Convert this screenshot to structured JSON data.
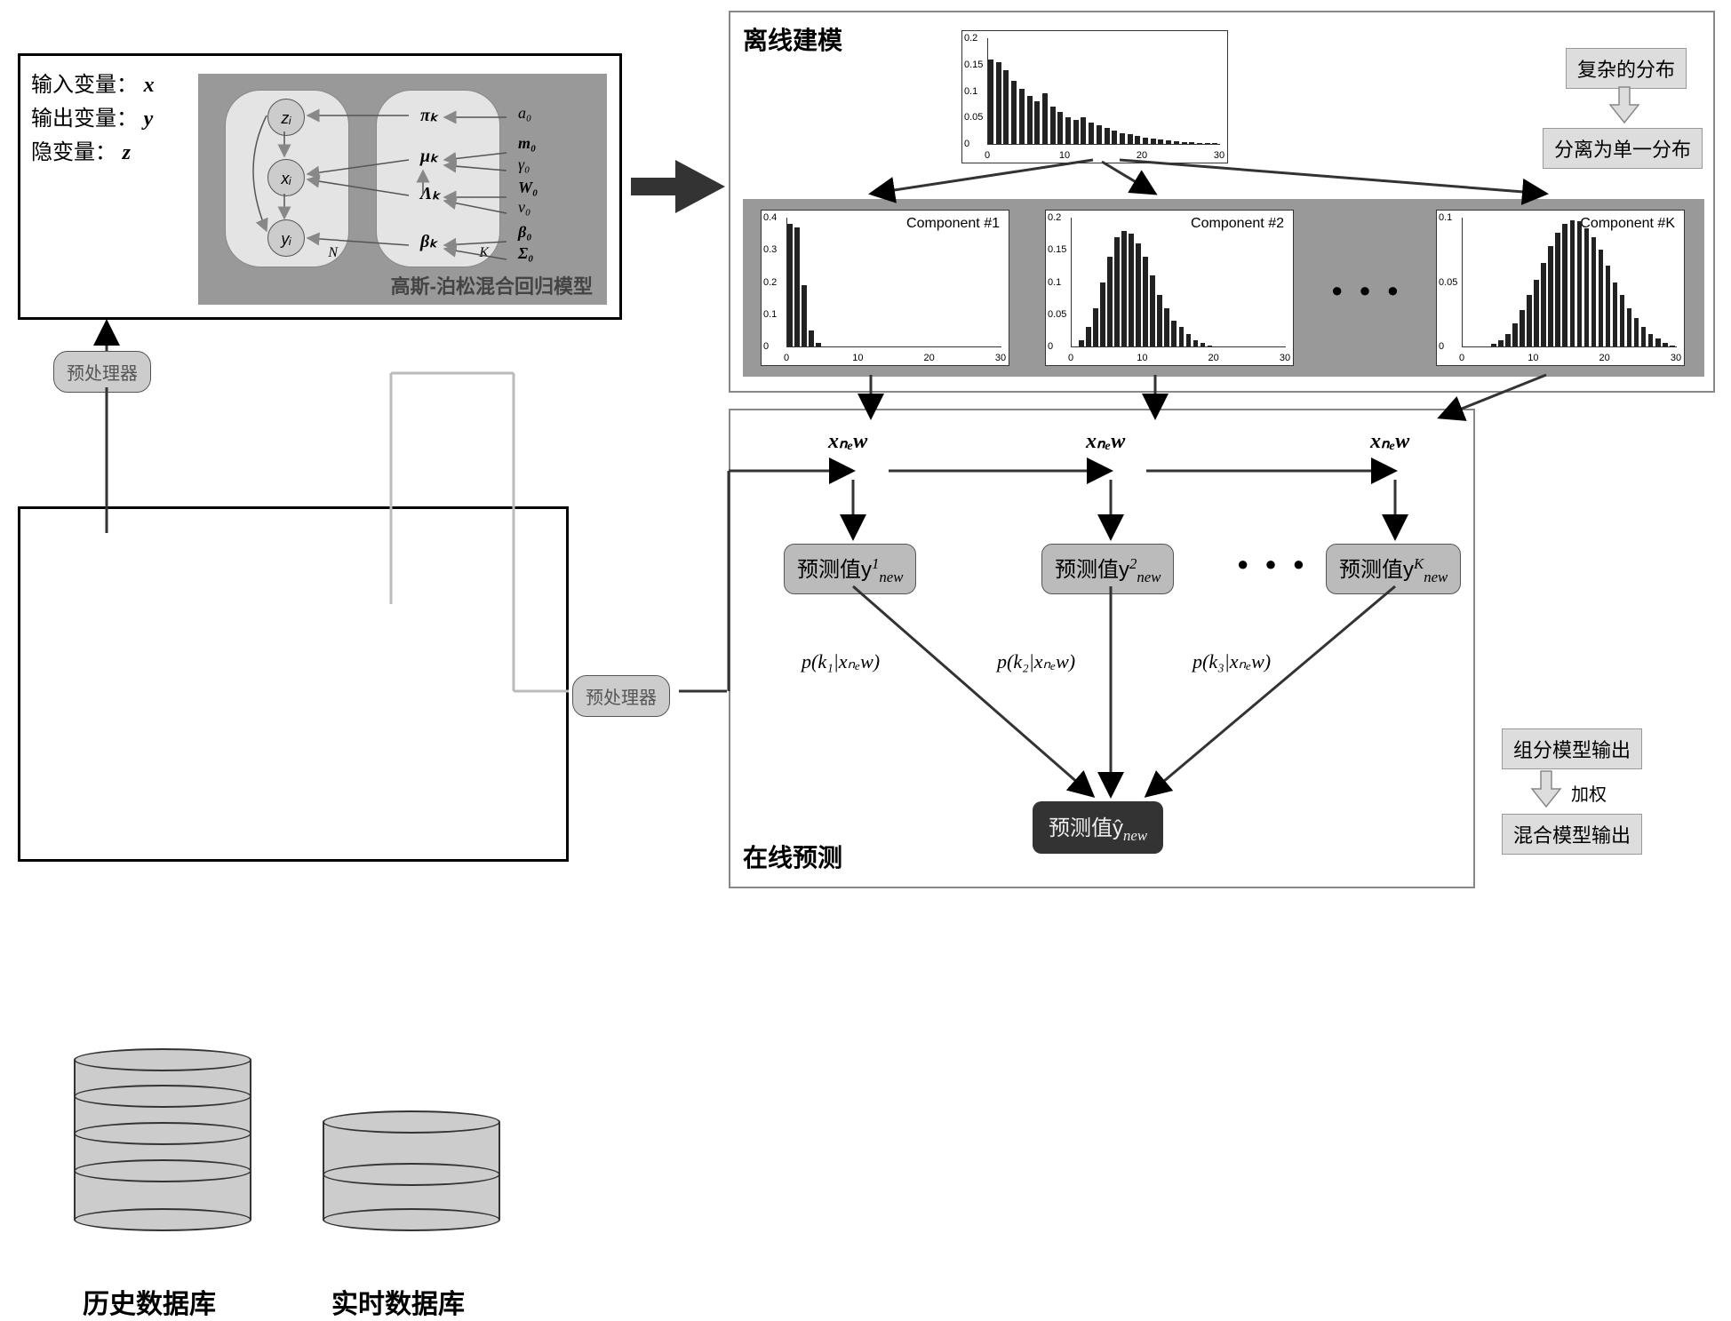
{
  "colors": {
    "panel_gray": "#999999",
    "light_gray": "#d6d6d6",
    "dark": "#333333",
    "bar": "#222222",
    "border": "#000000",
    "bg": "#ffffff"
  },
  "left_block": {
    "vars": {
      "line1": "输入变量：",
      "v1": "x",
      "line2": "输出变量：",
      "v2": "y",
      "line3": "隐变量：",
      "v3": "z"
    },
    "model_title": "高斯-泊松混合回归模型",
    "plate_left_label": "N",
    "plate_right_label": "K",
    "nodes_left": [
      "zᵢ",
      "xᵢ",
      "yᵢ"
    ],
    "nodes_right": [
      "πₖ",
      "μₖ",
      "Λₖ",
      "βₖ"
    ],
    "hyper": [
      "a₀",
      "m₀",
      "γ₀",
      "W₀",
      "ν₀",
      "β₀",
      "Σ₀"
    ]
  },
  "offline": {
    "title": "离线建模",
    "main_chart": {
      "title": "",
      "ylim": [
        0,
        0.2
      ],
      "yticks": [
        0,
        0.05,
        0.1,
        0.15,
        0.2
      ],
      "xticks": [
        0,
        10,
        20,
        30
      ],
      "values": [
        0.16,
        0.155,
        0.14,
        0.12,
        0.105,
        0.09,
        0.08,
        0.095,
        0.07,
        0.06,
        0.05,
        0.045,
        0.05,
        0.04,
        0.035,
        0.03,
        0.025,
        0.02,
        0.018,
        0.015,
        0.012,
        0.01,
        0.008,
        0.006,
        0.005,
        0.004,
        0.003,
        0.002,
        0.001,
        0.001
      ]
    },
    "right_labels": {
      "top": "复杂的分布",
      "bottom": "分离为单一分布"
    },
    "components": [
      {
        "title": "Component #1",
        "ylim": [
          0,
          0.4
        ],
        "yticks": [
          0,
          0.1,
          0.2,
          0.3,
          0.4
        ],
        "xticks": [
          0,
          10,
          20,
          30
        ],
        "values": [
          0.38,
          0.37,
          0.19,
          0.05,
          0.01,
          0,
          0,
          0,
          0,
          0,
          0,
          0,
          0,
          0,
          0,
          0,
          0,
          0,
          0,
          0,
          0,
          0,
          0,
          0,
          0,
          0,
          0,
          0,
          0,
          0
        ]
      },
      {
        "title": "Component #2",
        "ylim": [
          0,
          0.2
        ],
        "yticks": [
          0,
          0.05,
          0.1,
          0.15,
          0.2
        ],
        "xticks": [
          0,
          10,
          20,
          30
        ],
        "values": [
          0,
          0.01,
          0.03,
          0.06,
          0.1,
          0.14,
          0.17,
          0.18,
          0.175,
          0.16,
          0.14,
          0.11,
          0.08,
          0.06,
          0.04,
          0.03,
          0.02,
          0.01,
          0.005,
          0.002,
          0,
          0,
          0,
          0,
          0,
          0,
          0,
          0,
          0,
          0
        ]
      },
      {
        "title": "Component #K",
        "ylim": [
          0,
          0.1
        ],
        "yticks": [
          0,
          0.05,
          0.1
        ],
        "xticks": [
          0,
          10,
          20,
          30
        ],
        "values": [
          0,
          0,
          0,
          0,
          0.002,
          0.005,
          0.01,
          0.018,
          0.028,
          0.04,
          0.052,
          0.065,
          0.078,
          0.088,
          0.095,
          0.098,
          0.097,
          0.092,
          0.085,
          0.075,
          0.063,
          0.05,
          0.04,
          0.03,
          0.022,
          0.015,
          0.01,
          0.006,
          0.003,
          0.001
        ]
      }
    ],
    "dots": "● ● ●"
  },
  "online": {
    "title": "在线预测",
    "x_label": "xₙₑw",
    "preds": [
      {
        "text": "预测值y",
        "sup": "1",
        "sub": "new"
      },
      {
        "text": "预测值y",
        "sup": "2",
        "sub": "new"
      },
      {
        "text": "预测值y",
        "sup": "K",
        "sub": "new"
      }
    ],
    "dots": "● ● ●",
    "probs": [
      "p(k₁|xₙₑw)",
      "p(k₂|xₙₑw)",
      "p(k₃|xₙₑw)"
    ],
    "final": {
      "text": "预测值ŷ",
      "sub": "new"
    },
    "right_labels": {
      "top": "组分模型输出",
      "mid": "加权",
      "bottom": "混合模型输出"
    }
  },
  "preproc": {
    "label1": "预处理器",
    "label2": "预处理器"
  },
  "db": {
    "hist": "历史数据库",
    "rt": "实时数据库"
  }
}
